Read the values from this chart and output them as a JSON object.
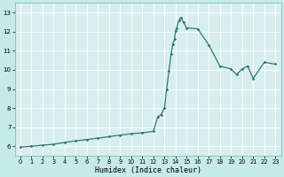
{
  "xlabel": "Humidex (Indice chaleur)",
  "line_color": "#2e7b6e",
  "marker": "D",
  "marker_size": 1.8,
  "bg_color": "#c5eaea",
  "grid_color": "#b8d8d8",
  "plot_bg": "#d8eeee",
  "ylim": [
    5.5,
    13.5
  ],
  "xlim": [
    -0.5,
    23.5
  ],
  "yticks": [
    6,
    7,
    8,
    9,
    10,
    11,
    12,
    13
  ],
  "xticks": [
    0,
    1,
    2,
    3,
    4,
    5,
    6,
    7,
    8,
    9,
    10,
    11,
    12,
    13,
    14,
    15,
    16,
    17,
    18,
    19,
    20,
    21,
    22,
    23
  ],
  "x": [
    0,
    1,
    2,
    3,
    4,
    5,
    6,
    7,
    8,
    9,
    10,
    11,
    12,
    12.4,
    12.7,
    13.0,
    13.2,
    13.4,
    13.6,
    13.75,
    13.9,
    14.0,
    14.1,
    14.3,
    14.5,
    14.7,
    15,
    16,
    17,
    18,
    19,
    19.5,
    20,
    20.5,
    21,
    22,
    23
  ],
  "y": [
    5.95,
    6.0,
    6.05,
    6.1,
    6.2,
    6.28,
    6.35,
    6.42,
    6.5,
    6.58,
    6.65,
    6.7,
    6.78,
    7.55,
    7.65,
    8.0,
    9.0,
    9.95,
    10.85,
    11.35,
    11.6,
    12.05,
    12.2,
    12.6,
    12.75,
    12.5,
    12.2,
    12.15,
    11.3,
    10.2,
    10.05,
    9.75,
    10.05,
    10.2,
    9.55,
    10.4,
    10.3
  ]
}
